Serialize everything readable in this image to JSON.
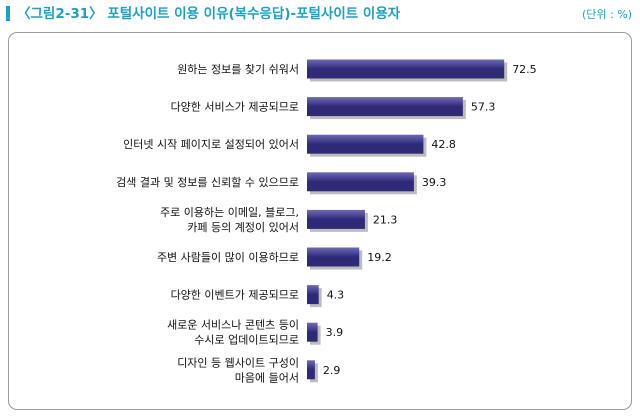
{
  "header": {
    "title": "〈그림2-31〉 포털사이트 이용 이유(복수응답)-포털사이트 이용자",
    "unit": "(단위 : %)"
  },
  "colors": {
    "title": "#19a2c6",
    "bar_dark": "#2e2a78",
    "bar_light": "#6e6ab8"
  },
  "chart_data": {
    "type": "bar",
    "orientation": "horizontal",
    "title": "〈그림2-31〉 포털사이트 이용 이유(복수응답)-포털사이트 이용자",
    "unit": "(단위 : %)",
    "xlim": [
      0,
      100
    ],
    "grid": false,
    "categories": [
      [
        "원하는 정보를 찾기 쉬워서"
      ],
      [
        "다양한 서비스가 제공되므로"
      ],
      [
        "인터넷 시작 페이지로 설정되어 있어서"
      ],
      [
        "검색 결과 및 정보를 신뢰할 수 있으므로"
      ],
      [
        "주로 이용하는 이메일, 블로그,",
        "카페 등의 계정이 있어서"
      ],
      [
        "주변 사람들이 많이 이용하므로"
      ],
      [
        "다양한 이벤트가 제공되므로"
      ],
      [
        "새로운 서비스나 콘텐츠 등이",
        "수시로 업데이트되므로"
      ],
      [
        "디자인 등 웹사이트 구성이",
        "마음에 들어서"
      ]
    ],
    "values": [
      72.5,
      57.3,
      42.8,
      39.3,
      21.3,
      19.2,
      4.3,
      3.9,
      2.9
    ],
    "value_labels": [
      "72.5",
      "57.3",
      "42.8",
      "39.3",
      "21.3",
      "19.2",
      "4.3",
      "3.9",
      "2.9"
    ]
  }
}
